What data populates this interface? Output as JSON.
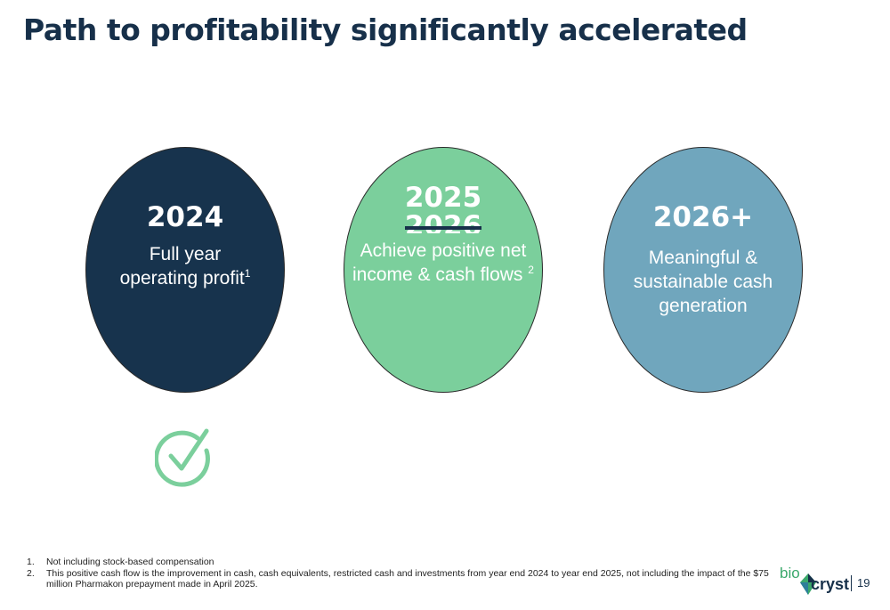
{
  "slide": {
    "title": "Path to profitability significantly accelerated",
    "page_number": "19"
  },
  "milestones": [
    {
      "year": "2024",
      "description_line1": "Full year",
      "description_line2": "operating profit",
      "footnote_ref": "1",
      "color": "#17334d",
      "status": "achieved",
      "status_icon": "checkmark-circle-icon"
    },
    {
      "year": "2025",
      "struck_year": "2026",
      "description_line1": "Achieve positive net",
      "description_line2": "income & cash flows",
      "footnote_ref": "2",
      "color": "#7bcf9c"
    },
    {
      "year": "2026+",
      "description_line1": "Meaningful &",
      "description_line2": "sustainable cash",
      "description_line3": "generation",
      "color": "#70a6bd"
    }
  ],
  "footnotes": [
    {
      "number": "1.",
      "text": "Not including stock-based compensation"
    },
    {
      "number": "2.",
      "text": "This positive cash flow is the improvement in cash, cash equivalents, restricted cash and investments from year end 2024 to year end 2025, not including the impact of the $75 million Pharmakon prepayment made in April 2025."
    }
  ],
  "logo": {
    "part1": "bio",
    "part2": "cryst",
    "icon": "diamond-gem-icon"
  },
  "colors": {
    "title": "#17304a",
    "check": "#7bcf9c"
  }
}
